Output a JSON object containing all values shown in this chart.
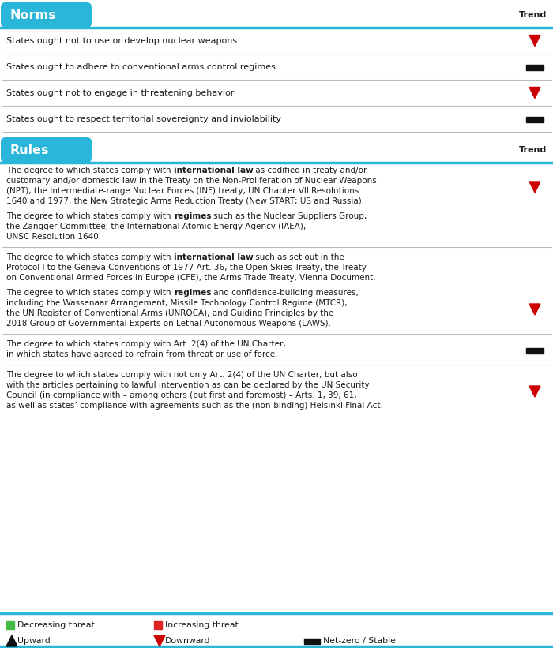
{
  "bg_color": "#ffffff",
  "header_color": "#29b6d8",
  "header_text_color": "#ffffff",
  "body_text_color": "#1a1a1a",
  "divider_color": "#bbbbbb",
  "trend_down_color": "#cc0000",
  "trend_stable_color": "#111111",
  "norms_header": "Norms",
  "rules_header": "Rules",
  "trend_label": "Trend",
  "norms_rows": [
    {
      "text": "States ought not to use or develop nuclear weapons",
      "trend": "down"
    },
    {
      "text": "States ought to adhere to conventional arms control regimes",
      "trend": "stable"
    },
    {
      "text": "States ought not to engage in threatening behavior",
      "trend": "down"
    },
    {
      "text": "States ought to respect territorial sovereignty and inviolability",
      "trend": "stable"
    }
  ],
  "rules_groups": [
    {
      "trend_row": 0,
      "rows": [
        {
          "parts": [
            {
              "text": "The degree to which states comply with ",
              "bold": false
            },
            {
              "text": "international law",
              "bold": true
            },
            {
              "text": " as codified in treaty and/or",
              "bold": false
            }
          ],
          "extra_lines": [
            "customary and/or domestic law in the Treaty on the Non-Proliferation of Nuclear Weapons",
            "(NPT), the Intermediate-range Nuclear Forces (INF) treaty, UN Chapter VII Resolutions",
            "1640 and 1977, the New Strategic Arms Reduction Treaty (New START; US and Russia)."
          ],
          "trend": "down"
        },
        {
          "parts": [
            {
              "text": "The degree to which states comply with ",
              "bold": false
            },
            {
              "text": "regimes",
              "bold": true
            },
            {
              "text": " such as the Nuclear Suppliers Group,",
              "bold": false
            }
          ],
          "extra_lines": [
            "the Zangger Committee, the International Atomic Energy Agency (IAEA),",
            "UNSC Resolution 1640."
          ],
          "trend": "none"
        }
      ]
    },
    {
      "rows": [
        {
          "parts": [
            {
              "text": "The degree to which states comply with ",
              "bold": false
            },
            {
              "text": "international law",
              "bold": true
            },
            {
              "text": " such as set out in the",
              "bold": false
            }
          ],
          "extra_lines": [
            "Protocol I to the Geneva Conventions of 1977 Art. 36, the Open Skies Treaty, the Treaty",
            "on Conventional Armed Forces in Europe (CFE), the Arms Trade Treaty, Vienna Document."
          ],
          "trend": "none"
        },
        {
          "parts": [
            {
              "text": "The degree to which states comply with ",
              "bold": false
            },
            {
              "text": "regimes",
              "bold": true
            },
            {
              "text": " and confidence-building measures,",
              "bold": false
            }
          ],
          "extra_lines": [
            "including the Wassenaar Arrangement, Missile Technology Control Regime (MTCR),",
            "the UN Register of Conventional Arms (UNROCA), and Guiding Principles by the",
            "2018 Group of Governmental Experts on Lethal Autonomous Weapons (LAWS)."
          ],
          "trend": "down"
        }
      ]
    },
    {
      "rows": [
        {
          "parts": [
            {
              "text": "The degree to which states comply with Art. 2(4) of the UN Charter,",
              "bold": false
            }
          ],
          "extra_lines": [
            "in which states have agreed to refrain from threat or use of force."
          ],
          "trend": "stable"
        }
      ]
    },
    {
      "rows": [
        {
          "parts": [
            {
              "text": "The degree to which states comply with not only Art. 2(4) of the UN Charter, but also",
              "bold": false
            }
          ],
          "extra_lines": [
            "with the articles pertaining to lawful intervention as can be declared by the UN Security",
            "Council (in compliance with – among others (but first and foremost) – Arts. 1, 39, 61,",
            "as well as states’ compliance with agreements such as the (non-binding) Helsinki Final Act."
          ],
          "trend": "down"
        }
      ]
    }
  ]
}
